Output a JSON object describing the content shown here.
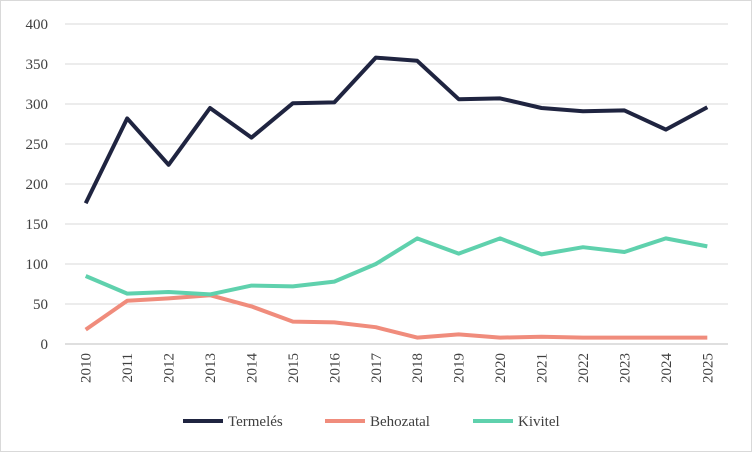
{
  "chart_data": {
    "type": "line",
    "title": "",
    "xlabel": "",
    "ylabel": "",
    "categories": [
      "2010",
      "2011",
      "2012",
      "2013",
      "2014",
      "2015",
      "2016",
      "2017",
      "2018",
      "2019",
      "2020",
      "2021",
      "2022",
      "2023",
      "2024",
      "2025"
    ],
    "y_ticks": [
      "0",
      "50",
      "100",
      "150",
      "200",
      "250",
      "300",
      "350",
      "400"
    ],
    "ylim": [
      0,
      400
    ],
    "grid": true,
    "legend_position": "bottom",
    "series": [
      {
        "name": "Termelés",
        "color": "#1f2440",
        "values": [
          176,
          282,
          224,
          295,
          258,
          301,
          302,
          358,
          354,
          306,
          307,
          295,
          291,
          292,
          268,
          296
        ]
      },
      {
        "name": "Behozatal",
        "color": "#f08c7c",
        "values": [
          18,
          54,
          57,
          61,
          47,
          28,
          27,
          21,
          8,
          12,
          8,
          9,
          8,
          8,
          8,
          8
        ]
      },
      {
        "name": "Kivitel",
        "color": "#5fd1ad",
        "values": [
          85,
          63,
          65,
          62,
          73,
          72,
          78,
          100,
          132,
          113,
          132,
          112,
          121,
          115,
          132,
          122
        ]
      }
    ]
  }
}
